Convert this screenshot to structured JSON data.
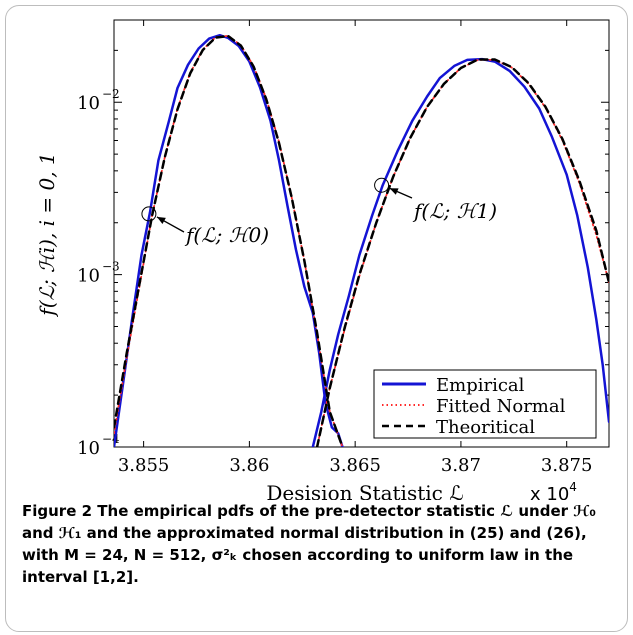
{
  "chart_data": {
    "type": "line",
    "xlabel": "Desision Statistic ℒ",
    "x_multiplier": "x 10^4",
    "ylabel": "f(ℒ; ℋi), i = 0, 1",
    "xlim": [
      3.8536,
      3.877
    ],
    "ylim": [
      0.0001,
      0.03
    ],
    "yscale": "log",
    "x_ticks": [
      3.855,
      3.86,
      3.865,
      3.87,
      3.875
    ],
    "x_tick_labels": [
      "3.855",
      "3.86",
      "3.865",
      "3.87",
      "3.875"
    ],
    "y_ticks": [
      0.0001,
      0.001,
      0.01
    ],
    "y_tick_labels": [
      "10",
      "10",
      "10"
    ],
    "y_tick_exponents": [
      "−4",
      "−3",
      "−2"
    ],
    "legend_position": "bottom-right",
    "series": [
      {
        "name": "Empirical",
        "color": "#1414d4",
        "style": "solid",
        "h0": {
          "x": [
            3.8536,
            3.8541,
            3.8545,
            3.8549,
            3.8553,
            3.8557,
            3.8562,
            3.8566,
            3.8571,
            3.8576,
            3.8581,
            3.8586,
            3.859,
            3.8595,
            3.86,
            3.8605,
            3.861,
            3.8614,
            3.8618,
            3.8622,
            3.8626,
            3.863,
            3.8633,
            3.8636,
            3.8639,
            3.8642,
            3.8644
          ],
          "y": [
            0.0001,
            0.00027,
            0.0006,
            0.0013,
            0.0023,
            0.0046,
            0.0078,
            0.0121,
            0.0165,
            0.0205,
            0.0234,
            0.0245,
            0.0236,
            0.0212,
            0.0172,
            0.0122,
            0.0078,
            0.0046,
            0.0025,
            0.0014,
            0.00085,
            0.0006,
            0.00035,
            0.00018,
            0.00013,
            0.00012,
            0.0001
          ]
        },
        "h1": {
          "x": [
            3.863,
            3.8634,
            3.8638,
            3.8642,
            3.8647,
            3.8652,
            3.8658,
            3.8663,
            3.867,
            3.8677,
            3.8684,
            3.869,
            3.8697,
            3.8703,
            3.871,
            3.8716,
            3.8723,
            3.873,
            3.8737,
            3.8743,
            3.875,
            3.8755,
            3.876,
            3.8764,
            3.8767,
            3.877
          ],
          "y": [
            0.0001,
            0.00016,
            0.00028,
            0.00045,
            0.00075,
            0.0013,
            0.0022,
            0.0033,
            0.0052,
            0.0078,
            0.0108,
            0.0138,
            0.0163,
            0.0176,
            0.0178,
            0.0172,
            0.0152,
            0.0123,
            0.0092,
            0.0063,
            0.0038,
            0.0022,
            0.0011,
            0.00055,
            0.0003,
            0.00014
          ]
        }
      },
      {
        "name": "Fitted Normal",
        "color": "#ff2a2a",
        "style": "dotted",
        "h0": {
          "x": [
            3.8536,
            3.8542,
            3.8548,
            3.8554,
            3.856,
            3.8566,
            3.8572,
            3.8578,
            3.8584,
            3.859,
            3.8596,
            3.8602,
            3.8608,
            3.8614,
            3.862,
            3.8626,
            3.8632,
            3.8638,
            3.8644
          ],
          "y": [
            0.00012,
            0.00033,
            0.00085,
            0.0022,
            0.0048,
            0.0092,
            0.0148,
            0.0202,
            0.0238,
            0.0243,
            0.0214,
            0.0162,
            0.0105,
            0.0059,
            0.0028,
            0.0012,
            0.00045,
            0.00016,
            0.0001
          ]
        },
        "h1": {
          "x": [
            3.8632,
            3.8638,
            3.8645,
            3.8652,
            3.866,
            3.8668,
            3.8676,
            3.8684,
            3.8692,
            3.87,
            3.8708,
            3.8716,
            3.8724,
            3.8732,
            3.874,
            3.8748,
            3.8756,
            3.8764,
            3.877
          ],
          "y": [
            0.0001,
            0.00022,
            0.00048,
            0.00098,
            0.002,
            0.0037,
            0.0062,
            0.0094,
            0.0128,
            0.0158,
            0.0176,
            0.0176,
            0.0159,
            0.0128,
            0.0093,
            0.006,
            0.0034,
            0.0017,
            0.0009
          ]
        }
      },
      {
        "name": "Theoritical",
        "color": "#000000",
        "style": "dashed",
        "h0": {
          "x": [
            3.8536,
            3.8542,
            3.8548,
            3.8554,
            3.856,
            3.8566,
            3.8572,
            3.8578,
            3.8584,
            3.859,
            3.8596,
            3.8602,
            3.8608,
            3.8614,
            3.862,
            3.8626,
            3.8632,
            3.8638,
            3.8644
          ],
          "y": [
            0.00013,
            0.00035,
            0.00088,
            0.0022,
            0.0048,
            0.0091,
            0.0147,
            0.0201,
            0.0237,
            0.0242,
            0.0213,
            0.0161,
            0.0104,
            0.0058,
            0.0028,
            0.0012,
            0.00046,
            0.00016,
            0.0001
          ]
        },
        "h1": {
          "x": [
            3.8632,
            3.8638,
            3.8645,
            3.8652,
            3.866,
            3.8668,
            3.8676,
            3.8684,
            3.8692,
            3.87,
            3.8708,
            3.8716,
            3.8724,
            3.8732,
            3.874,
            3.8748,
            3.8756,
            3.8764,
            3.877
          ],
          "y": [
            0.0001,
            0.00022,
            0.00049,
            0.001,
            0.002,
            0.0037,
            0.0062,
            0.0094,
            0.0128,
            0.0158,
            0.0177,
            0.0177,
            0.016,
            0.0129,
            0.0094,
            0.0061,
            0.0035,
            0.0018,
            0.0009
          ]
        }
      }
    ],
    "annotations": [
      {
        "text": "f(ℒ; ℋ0)",
        "x": 3.85525,
        "y": 0.00225
      },
      {
        "text": "f(ℒ; ℋ1)",
        "x": 3.86625,
        "y": 0.0033
      }
    ]
  },
  "caption": {
    "label": "Figure 2",
    "text": "The empirical pdfs of the pre-detector statistic ℒ under ℋ₀ and ℋ₁ and the approximated normal distribution in (25) and (26), with M = 24, N = 512, σ²ₖ chosen according to uniform law in the interval [1,2]."
  }
}
